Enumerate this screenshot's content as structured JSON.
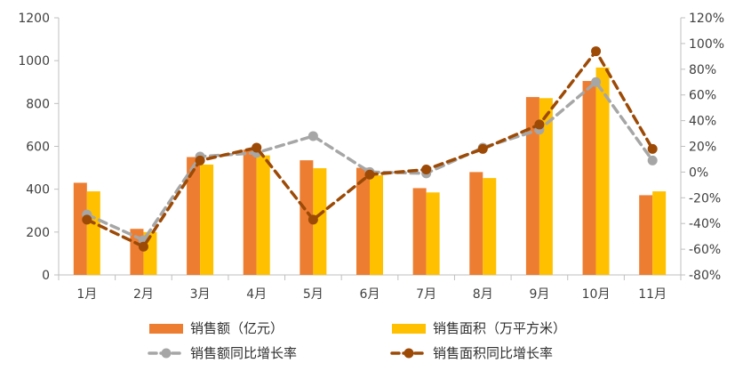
{
  "chart_data": {
    "type": "bar",
    "categories": [
      "1月",
      "2月",
      "3月",
      "4月",
      "5月",
      "6月",
      "7月",
      "8月",
      "9月",
      "10月",
      "11月"
    ],
    "series": [
      {
        "name": "销售额（亿元）",
        "type": "bar",
        "axis": "left",
        "color": "#ED7D31",
        "values": [
          430,
          215,
          550,
          585,
          535,
          500,
          405,
          480,
          830,
          905,
          372
        ]
      },
      {
        "name": "销售面积（万平方米）",
        "type": "bar",
        "axis": "left",
        "color": "#FFC000",
        "values": [
          390,
          200,
          515,
          558,
          498,
          465,
          385,
          452,
          825,
          968,
          390
        ]
      },
      {
        "name": "销售额同比增长率",
        "type": "line",
        "axis": "right",
        "color": "#A6A6A6",
        "dash": "dashed",
        "marker": "circle",
        "values": [
          -33,
          -53,
          12,
          15,
          28,
          0,
          -1,
          19,
          33,
          70,
          9
        ]
      },
      {
        "name": "销售面积同比增长率",
        "type": "line",
        "axis": "right",
        "color": "#9C4A06",
        "dash": "dashed",
        "marker": "circle",
        "values": [
          -37,
          -58,
          9,
          19,
          -37,
          -2,
          2,
          18,
          37,
          94,
          18
        ]
      }
    ],
    "y_left": {
      "min": 0,
      "max": 1200,
      "step": 200,
      "ticks": [
        "0",
        "200",
        "400",
        "600",
        "800",
        "1000",
        "1200"
      ]
    },
    "y_right": {
      "min": -80,
      "max": 120,
      "step": 20,
      "ticks": [
        "-80%",
        "-60%",
        "-40%",
        "-20%",
        "0%",
        "20%",
        "40%",
        "60%",
        "80%",
        "100%",
        "120%"
      ]
    },
    "grid": false,
    "legend_position": "bottom"
  }
}
